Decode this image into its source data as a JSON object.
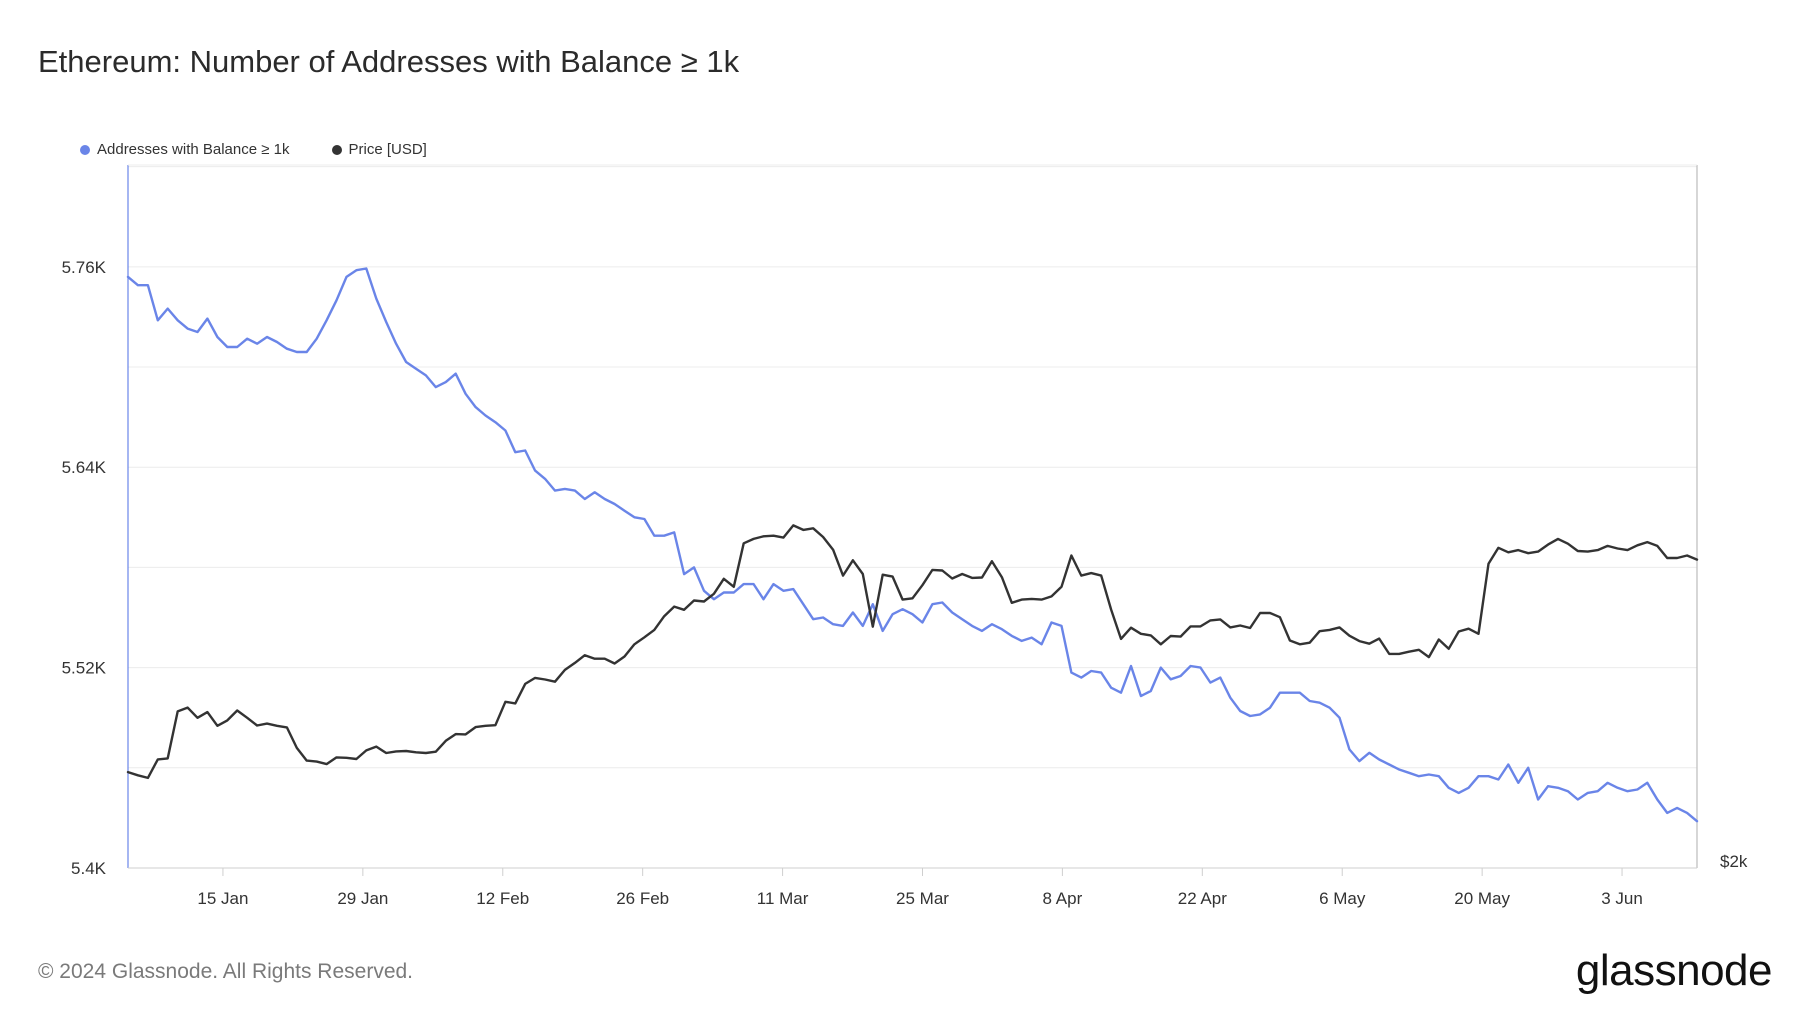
{
  "title": "Ethereum: Number of Addresses with Balance ≥ 1k",
  "footer": {
    "copyright": "© 2024 Glassnode. All Rights Reserved.",
    "logo": "glassnode"
  },
  "legend": [
    {
      "label": "Addresses with Balance ≥ 1k",
      "color": "#6a85e8"
    },
    {
      "label": "Price [USD]",
      "color": "#333333"
    }
  ],
  "chart_data": {
    "type": "line",
    "title": "Ethereum: Number of Addresses with Balance ≥ 1k",
    "x_ticks": [
      "15 Jan",
      "29 Jan",
      "12 Feb",
      "26 Feb",
      "11 Mar",
      "25 Mar",
      "8 Apr",
      "22 Apr",
      "6 May",
      "20 May",
      "3 Jun"
    ],
    "x_range_days": [
      0,
      157
    ],
    "x_tick_day": [
      9.5,
      23.5,
      37.5,
      51.5,
      65.5,
      79.5,
      93.5,
      107.5,
      121.5,
      135.5,
      149.5
    ],
    "left_axis": {
      "label": "Addresses with Balance ≥ 1k",
      "ticks": [
        "5.4K",
        "5.52K",
        "5.64K",
        "5.76K"
      ],
      "tick_values": [
        5400,
        5520,
        5640,
        5760
      ],
      "range": [
        5400,
        5821
      ]
    },
    "right_axis": {
      "label": "Price [USD]",
      "ticks": [
        "$2k"
      ],
      "tick_values": [
        2000
      ],
      "range": [
        2000,
        4200
      ]
    },
    "series": [
      {
        "name": "Addresses with Balance ≥ 1k",
        "color": "#6a85e8",
        "axis": "left",
        "values": [
          5754,
          5749,
          5749,
          5728,
          5735,
          5728,
          5723,
          5721,
          5729,
          5718,
          5712,
          5712,
          5717,
          5714,
          5718,
          5715,
          5711,
          5709,
          5709,
          5717,
          5728,
          5740,
          5754,
          5758,
          5759,
          5741,
          5727,
          5714,
          5703,
          5699,
          5695,
          5688,
          5691,
          5696,
          5684,
          5676,
          5671,
          5667,
          5662,
          5649,
          5650,
          5638,
          5633,
          5626,
          5627,
          5626,
          5621,
          5625,
          5621,
          5618,
          5614,
          5610,
          5609,
          5599,
          5599,
          5601,
          5576,
          5580,
          5566,
          5561,
          5565,
          5565,
          5570,
          5570,
          5561,
          5570,
          5566,
          5567,
          5558,
          5549,
          5550,
          5546,
          5545,
          5553,
          5545,
          5558,
          5542,
          5552,
          5555,
          5552,
          5547,
          5558,
          5559,
          5553,
          5549,
          5545,
          5542,
          5546,
          5543,
          5539,
          5536,
          5538,
          5534,
          5547,
          5545,
          5517,
          5514,
          5518,
          5517,
          5508,
          5505,
          5521,
          5503,
          5506,
          5520,
          5513,
          5515,
          5521,
          5520,
          5511,
          5514,
          5502,
          5494,
          5491,
          5492,
          5496,
          5505,
          5505,
          5505,
          5500,
          5499,
          5496,
          5490,
          5471,
          5464,
          5469,
          5465,
          5462,
          5459,
          5457,
          5455,
          5456,
          5455,
          5448,
          5445,
          5448,
          5455,
          5455,
          5453,
          5462,
          5451,
          5460,
          5441,
          5449,
          5448,
          5446,
          5441,
          5445,
          5446,
          5451,
          5448,
          5446,
          5447,
          5451,
          5441,
          5433,
          5436,
          5433,
          5428
        ]
      },
      {
        "name": "Price [USD]",
        "color": "#333333",
        "axis": "right",
        "values": [
          2300,
          2290,
          2282,
          2340,
          2343,
          2490,
          2502,
          2470,
          2488,
          2445,
          2462,
          2493,
          2470,
          2446,
          2452,
          2445,
          2440,
          2376,
          2336,
          2333,
          2325,
          2346,
          2345,
          2341,
          2368,
          2380,
          2360,
          2365,
          2366,
          2362,
          2360,
          2364,
          2398,
          2419,
          2418,
          2441,
          2445,
          2447,
          2520,
          2515,
          2576,
          2595,
          2590,
          2583,
          2620,
          2642,
          2666,
          2655,
          2655,
          2640,
          2662,
          2700,
          2722,
          2745,
          2788,
          2818,
          2808,
          2837,
          2834,
          2858,
          2905,
          2880,
          3016,
          3030,
          3038,
          3040,
          3034,
          3072,
          3058,
          3063,
          3036,
          2996,
          2915,
          2963,
          2920,
          2755,
          2918,
          2912,
          2840,
          2844,
          2885,
          2933,
          2931,
          2906,
          2920,
          2908,
          2909,
          2960,
          2910,
          2830,
          2840,
          2842,
          2840,
          2850,
          2880,
          2978,
          2915,
          2923,
          2915,
          2809,
          2717,
          2752,
          2733,
          2728,
          2700,
          2726,
          2724,
          2756,
          2756,
          2775,
          2778,
          2753,
          2759,
          2751,
          2798,
          2798,
          2785,
          2712,
          2700,
          2705,
          2741,
          2745,
          2753,
          2727,
          2710,
          2702,
          2718,
          2670,
          2670,
          2677,
          2683,
          2660,
          2715,
          2686,
          2740,
          2749,
          2733,
          2952,
          3002,
          2988,
          2995,
          2985,
          2990,
          3012,
          3030,
          3015,
          2992,
          2990,
          2995,
          3008,
          3000,
          2995,
          3010,
          3020,
          3008,
          2970,
          2970,
          2978,
          2965
        ]
      }
    ],
    "grid": true,
    "legend_position": "top-left"
  }
}
